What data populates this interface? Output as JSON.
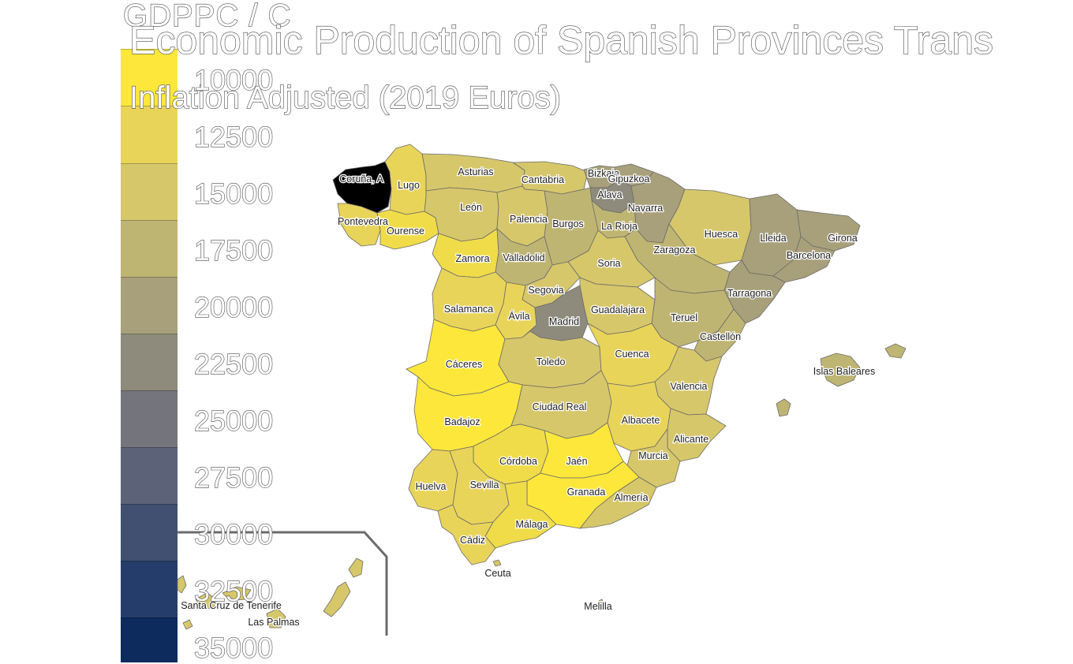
{
  "legend": {
    "title": "GDPPC / C",
    "ticks": [
      "10000",
      "12500",
      "15000",
      "17500",
      "20000",
      "22500",
      "25000",
      "27500",
      "30000",
      "32500",
      "35000"
    ],
    "colors": [
      "#FDE73A",
      "#E9D45A",
      "#D6C76A",
      "#BFB573",
      "#A8A07A",
      "#8E8B7C",
      "#74757C",
      "#5C6378",
      "#415070",
      "#253D6A",
      "#0E2B5E"
    ]
  },
  "title": {
    "line1": "Economic Production of Spanish Provinces Trans",
    "line2": "Inflation Adjusted (2019 Euros)"
  },
  "provinces": [
    {
      "name": "Coruña, A",
      "color": "#E9D45A"
    },
    {
      "name": "Lugo",
      "color": "#E9D45A"
    },
    {
      "name": "Asturias",
      "color": "#D6C76A"
    },
    {
      "name": "Cantabria",
      "color": "#D6C76A"
    },
    {
      "name": "Bizkaia",
      "color": "#A8A07A"
    },
    {
      "name": "Gipuzkoa",
      "color": "#A8A07A"
    },
    {
      "name": "Alava",
      "color": "#8E8B7C"
    },
    {
      "name": "Navarra",
      "color": "#A8A07A"
    },
    {
      "name": "Pontevedra",
      "color": "#E9D45A"
    },
    {
      "name": "Ourense",
      "color": "#F0DC48"
    },
    {
      "name": "León",
      "color": "#D6C76A"
    },
    {
      "name": "Palencia",
      "color": "#D6C76A"
    },
    {
      "name": "Burgos",
      "color": "#BFB573"
    },
    {
      "name": "La Rioja",
      "color": "#BFB573"
    },
    {
      "name": "Huesca",
      "color": "#D6C76A"
    },
    {
      "name": "Lleida",
      "color": "#A8A07A"
    },
    {
      "name": "Girona",
      "color": "#A8A07A"
    },
    {
      "name": "Barcelona",
      "color": "#A8A07A"
    },
    {
      "name": "Zamora",
      "color": "#F0DC48"
    },
    {
      "name": "Valladolid",
      "color": "#BFB573"
    },
    {
      "name": "Soria",
      "color": "#D6C76A"
    },
    {
      "name": "Zaragoza",
      "color": "#BFB573"
    },
    {
      "name": "Tarragona",
      "color": "#A8A07A"
    },
    {
      "name": "Segovia",
      "color": "#D6C76A"
    },
    {
      "name": "Salamanca",
      "color": "#E9D45A"
    },
    {
      "name": "Ávila",
      "color": "#E9D45A"
    },
    {
      "name": "Madrid",
      "color": "#8E8B7C"
    },
    {
      "name": "Guadalajara",
      "color": "#D6C76A"
    },
    {
      "name": "Teruel",
      "color": "#BFB573"
    },
    {
      "name": "Castellón",
      "color": "#BFB573"
    },
    {
      "name": "Cáceres",
      "color": "#FDE73A"
    },
    {
      "name": "Toledo",
      "color": "#D6C76A"
    },
    {
      "name": "Cuenca",
      "color": "#E9D45A"
    },
    {
      "name": "Valencia",
      "color": "#D6C76A"
    },
    {
      "name": "Islas Baleares",
      "color": "#BFB573"
    },
    {
      "name": "Badajoz",
      "color": "#FDE73A"
    },
    {
      "name": "Ciudad Real",
      "color": "#D6C76A"
    },
    {
      "name": "Albacete",
      "color": "#E9D45A"
    },
    {
      "name": "Alicante",
      "color": "#D6C76A"
    },
    {
      "name": "Córdoba",
      "color": "#F0DC48"
    },
    {
      "name": "Jaén",
      "color": "#FDE73A"
    },
    {
      "name": "Murcia",
      "color": "#D6C76A"
    },
    {
      "name": "Huelva",
      "color": "#E9D45A"
    },
    {
      "name": "Sevilla",
      "color": "#E9D45A"
    },
    {
      "name": "Granada",
      "color": "#FDE73A"
    },
    {
      "name": "Almería",
      "color": "#D6C76A"
    },
    {
      "name": "Málaga",
      "color": "#F0DC48"
    },
    {
      "name": "Cádiz",
      "color": "#E9D45A"
    },
    {
      "name": "Ceuta",
      "color": "#D6C76A"
    },
    {
      "name": "Melilla",
      "color": "#D6C76A"
    },
    {
      "name": "Santa Cruz de Tenerife",
      "color": "#D6C76A"
    },
    {
      "name": "Las Palmas",
      "color": "#D6C76A"
    }
  ]
}
